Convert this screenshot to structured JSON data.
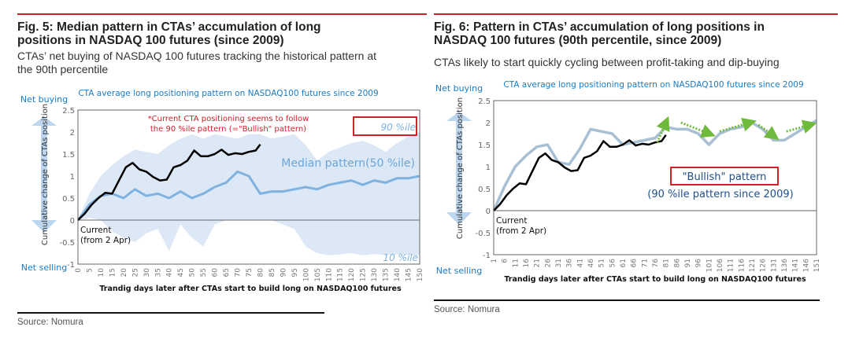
{
  "panels": [
    {
      "fig_title_line1": "Fig. 5: Median pattern in CTAs’ accumulation of long",
      "fig_title_line2": "positions in NASDAQ 100 futures (since 2009)",
      "subtitle_line1": "CTAs’ net buying of NASDAQ 100 futures tracking the historical pattern at",
      "subtitle_line2": "the 90th percentile",
      "source": "Source: Nomura"
    },
    {
      "fig_title_line1": "Fig. 6: Pattern in CTAs’ accumulation of long positions in",
      "fig_title_line2": "NASDAQ 100 futures (90th percentile, since 2009)",
      "subtitle_line1": "CTAs likely to start quickly cycling between profit-taking and dip-buying",
      "source": "Source: Nomura"
    }
  ],
  "colors": {
    "title_rule": "#c9242b",
    "band": "#dce8f5",
    "median_line": "#7fb2e0",
    "bullish_line": "#a9bfd4",
    "current_line": "#000000",
    "arrow_green": "#6fba3c",
    "annotation_red": "#d0202a",
    "chart_title_blue": "#1a7ac6"
  },
  "chart_data": [
    {
      "type": "area",
      "title": "CTA average long positioning pattern on NASDAQ100 futures since 2009",
      "xlabel": "Trandig days later after CTAs start to build long on NASDAQ100 futures",
      "ylabel": "Cumulative change of CTAs position",
      "y_top_label": "Net buying",
      "y_bottom_label": "Net selling",
      "ylim": [
        -1,
        2.5
      ],
      "yticks": [
        "2.5",
        "2",
        "1.5",
        "1",
        "0.5",
        "0",
        "-0.5",
        "-1"
      ],
      "xlim": [
        0,
        150
      ],
      "xticks": [
        "0",
        "5",
        "10",
        "15",
        "20",
        "25",
        "30",
        "35",
        "40",
        "45",
        "50",
        "55",
        "60",
        "65",
        "70",
        "75",
        "80",
        "85",
        "90",
        "95",
        "100",
        "105",
        "110",
        "115",
        "120",
        "125",
        "130",
        "135",
        "140",
        "145",
        "150"
      ],
      "grid": false,
      "annotations": {
        "note_line1": "*Current CTA positioning seems to follow",
        "note_line2": "the 90 %ile pattern (=\"Bullish\" pattern)",
        "p90_label": "90 %ile",
        "p10_label": "10 %ile",
        "median_label": "Median pattern(50 %ile)",
        "current_line1": "Current",
        "current_line2": "(from 2 Apr)"
      },
      "series": [
        {
          "name": "90 %ile",
          "x": [
            0,
            5,
            10,
            15,
            20,
            25,
            30,
            35,
            40,
            45,
            50,
            55,
            60,
            65,
            70,
            75,
            80,
            85,
            90,
            95,
            100,
            105,
            110,
            115,
            120,
            125,
            130,
            135,
            140,
            145,
            150
          ],
          "values": [
            0,
            0.6,
            1.0,
            1.25,
            1.45,
            1.6,
            1.55,
            1.5,
            1.7,
            1.85,
            1.95,
            1.85,
            1.95,
            1.9,
            1.85,
            1.95,
            1.95,
            1.85,
            1.9,
            1.95,
            1.7,
            1.35,
            1.55,
            1.65,
            1.75,
            1.8,
            1.7,
            1.55,
            1.75,
            1.9,
            2.0
          ]
        },
        {
          "name": "10 %ile",
          "x": [
            0,
            5,
            10,
            15,
            20,
            25,
            30,
            35,
            40,
            45,
            50,
            55,
            60,
            65,
            70,
            75,
            80,
            85,
            90,
            95,
            100,
            105,
            110,
            115,
            120,
            125,
            130,
            135,
            140,
            145,
            150
          ],
          "values": [
            0,
            0.05,
            0,
            -0.25,
            -0.4,
            -0.5,
            -0.3,
            -0.2,
            -0.7,
            -0.1,
            -0.4,
            -0.6,
            -0.1,
            0,
            0,
            0,
            0,
            0,
            -0.1,
            -0.2,
            -0.6,
            -0.75,
            -0.8,
            -0.78,
            -0.75,
            -0.8,
            -0.77,
            -0.8,
            -0.78,
            -0.8,
            -0.8
          ]
        },
        {
          "name": "Median pattern(50 %ile)",
          "x": [
            0,
            5,
            10,
            15,
            20,
            25,
            30,
            35,
            40,
            45,
            50,
            55,
            60,
            65,
            70,
            75,
            80,
            85,
            90,
            95,
            100,
            105,
            110,
            115,
            120,
            125,
            130,
            135,
            140,
            145,
            150
          ],
          "values": [
            0,
            0.35,
            0.55,
            0.6,
            0.5,
            0.7,
            0.55,
            0.6,
            0.5,
            0.65,
            0.5,
            0.6,
            0.75,
            0.85,
            1.1,
            1.0,
            0.6,
            0.65,
            0.65,
            0.7,
            0.75,
            0.7,
            0.8,
            0.85,
            0.9,
            0.8,
            0.9,
            0.85,
            0.95,
            0.95,
            1.0
          ]
        },
        {
          "name": "Current (from 2 Apr)",
          "x": [
            0,
            3,
            6,
            9,
            12,
            15,
            18,
            21,
            24,
            27,
            30,
            33,
            36,
            39,
            42,
            45,
            48,
            51,
            54,
            57,
            60,
            63,
            66,
            69,
            72,
            75,
            78,
            80
          ],
          "values": [
            0,
            0.15,
            0.35,
            0.5,
            0.62,
            0.6,
            0.9,
            1.2,
            1.3,
            1.15,
            1.1,
            0.98,
            0.9,
            0.92,
            1.2,
            1.25,
            1.35,
            1.58,
            1.45,
            1.45,
            1.5,
            1.6,
            1.48,
            1.52,
            1.5,
            1.55,
            1.58,
            1.72
          ]
        }
      ]
    },
    {
      "type": "line",
      "title": "CTA average long positioning pattern on NASDAQ100 futures since 2009",
      "xlabel": "Trandig days later after CTAs start to build long on NASDAQ100 futures",
      "ylabel": "Cumulative change of CTAs position",
      "y_top_label": "Net buying",
      "y_bottom_label": "Net selling",
      "ylim": [
        -1,
        2.5
      ],
      "yticks": [
        "2.5",
        "2",
        "1.5",
        "1",
        "0.5",
        "0",
        "-0.5",
        "-1"
      ],
      "xlim": [
        1,
        151
      ],
      "xticks": [
        "1",
        "6",
        "11",
        "16",
        "21",
        "26",
        "31",
        "36",
        "41",
        "46",
        "51",
        "56",
        "61",
        "66",
        "71",
        "76",
        "81",
        "86",
        "91",
        "96",
        "101",
        "106",
        "111",
        "116",
        "121",
        "126",
        "131",
        "136",
        "141",
        "146",
        "151"
      ],
      "grid": false,
      "annotations": {
        "bullish_label": "\"Bullish\" pattern",
        "bullish_sub": "(90 %ile pattern since 2009)",
        "current_line1": "Current",
        "current_line2": "(from 2 Apr)"
      },
      "series": [
        {
          "name": "\"Bullish\" pattern (90 %ile)",
          "x": [
            1,
            6,
            11,
            16,
            21,
            26,
            31,
            36,
            41,
            46,
            51,
            56,
            61,
            66,
            71,
            76,
            81,
            86,
            91,
            96,
            101,
            106,
            111,
            116,
            121,
            126,
            131,
            136,
            141,
            146,
            151
          ],
          "values": [
            0,
            0.55,
            1.0,
            1.25,
            1.45,
            1.5,
            1.1,
            1.05,
            1.4,
            1.85,
            1.8,
            1.75,
            1.5,
            1.55,
            1.6,
            1.65,
            1.9,
            1.85,
            1.85,
            1.75,
            1.5,
            1.75,
            1.85,
            1.9,
            2.0,
            1.85,
            1.6,
            1.6,
            1.75,
            1.9,
            2.05
          ]
        },
        {
          "name": "Current (from 2 Apr)",
          "x": [
            1,
            4,
            7,
            10,
            13,
            16,
            19,
            22,
            25,
            28,
            31,
            34,
            37,
            40,
            43,
            46,
            49,
            52,
            55,
            58,
            61,
            64,
            67,
            70,
            73,
            76,
            79,
            81
          ],
          "values": [
            0,
            0.15,
            0.35,
            0.5,
            0.62,
            0.6,
            0.9,
            1.2,
            1.3,
            1.15,
            1.1,
            0.98,
            0.9,
            0.92,
            1.2,
            1.25,
            1.35,
            1.58,
            1.45,
            1.45,
            1.5,
            1.6,
            1.48,
            1.52,
            1.5,
            1.55,
            1.58,
            1.72
          ]
        }
      ],
      "arrows": [
        {
          "from": [
            77,
            1.55
          ],
          "to": [
            81,
            2.0
          ],
          "direction": "up"
        },
        {
          "from": [
            88,
            2.0
          ],
          "to": [
            101,
            1.75
          ],
          "direction": "down"
        },
        {
          "from": [
            106,
            1.8
          ],
          "to": [
            120,
            2.0
          ],
          "direction": "up"
        },
        {
          "from": [
            124,
            1.95
          ],
          "to": [
            131,
            1.7
          ],
          "direction": "down"
        },
        {
          "from": [
            137,
            1.8
          ],
          "to": [
            148,
            1.95
          ],
          "direction": "up"
        }
      ]
    }
  ]
}
